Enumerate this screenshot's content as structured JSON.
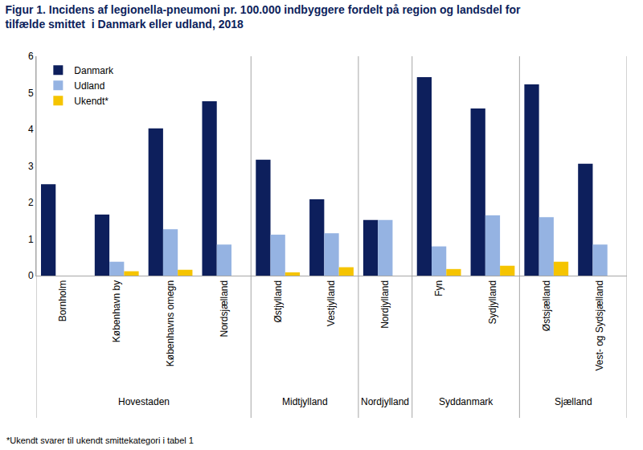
{
  "chart_data": {
    "type": "bar",
    "title": "Figur 1. Incidens af legionella-pneumoni pr. 100.000 indbyggere fordelt på region og landsdel for tilfælde smittet  i Danmark eller udland, 2018",
    "note": "*Ukendt svarer til ukendt smittekategori i tabel 1",
    "categories": [
      "Bornholm",
      "København by",
      "Københavns omegn",
      "Nordsjælland",
      "Østjylland",
      "Vestjylland",
      "Nordjylland",
      "Fyn",
      "Sydjylland",
      "Østsjælland",
      "Vest- og Sydsjælland"
    ],
    "groups": [
      {
        "name": "Hovestaden",
        "categories": [
          "Bornholm",
          "København by",
          "Københavns omegn",
          "Nordsjælland"
        ]
      },
      {
        "name": "Midtjylland",
        "categories": [
          "Østjylland",
          "Vestjylland"
        ]
      },
      {
        "name": "Nordjylland",
        "categories": [
          "Nordjylland"
        ]
      },
      {
        "name": "Syddanmark",
        "categories": [
          "Fyn",
          "Sydjylland"
        ]
      },
      {
        "name": "Sjælland",
        "categories": [
          "Østsjælland",
          "Vest- og Sydsjælland"
        ]
      }
    ],
    "series": [
      {
        "name": "Danmark",
        "color": "#0d1f5c",
        "values": [
          2.5,
          1.67,
          4.03,
          4.77,
          3.17,
          2.09,
          1.52,
          5.43,
          4.57,
          5.23,
          3.06
        ]
      },
      {
        "name": "Udland",
        "color": "#95b3e2",
        "values": [
          0,
          0.38,
          1.27,
          0.85,
          1.12,
          1.16,
          1.52,
          0.8,
          1.65,
          1.6,
          0.85
        ]
      },
      {
        "name": "Ukendt*",
        "color": "#f5c400",
        "values": [
          0,
          0.12,
          0.16,
          0,
          0.09,
          0.23,
          0,
          0.18,
          0.27,
          0.38,
          0
        ]
      }
    ],
    "ylim": [
      0,
      6
    ],
    "yticks": [
      0,
      1,
      2,
      3,
      4,
      5,
      6
    ],
    "grid": false,
    "legend": "top-left"
  }
}
